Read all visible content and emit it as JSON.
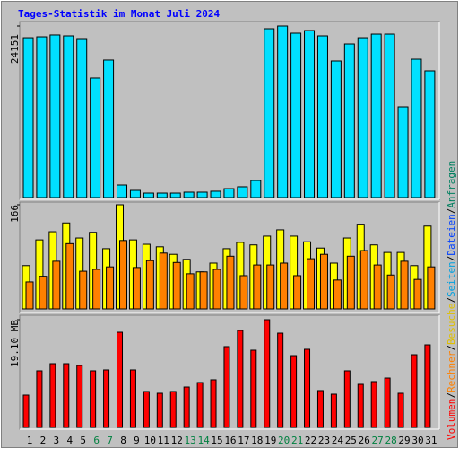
{
  "chart_data": [
    {
      "type": "bar",
      "title": "Tages-Statistik im Monat Juli 2024",
      "title_color": "#0000ff",
      "series": [
        {
          "color": "#00e0ff",
          "values": [
            22500,
            22630,
            22890,
            22760,
            22380,
            16820,
            19350,
            1770,
            1010,
            630,
            630,
            630,
            760,
            760,
            890,
            1260,
            1520,
            2400,
            23770,
            24151,
            23140,
            23520,
            22760,
            19220,
            21620,
            22500,
            23010,
            23010,
            12770,
            19470,
            17830
          ]
        }
      ],
      "ylim": [
        0,
        24151
      ],
      "yticks": [
        24151
      ]
    },
    {
      "type": "bar",
      "series": [
        {
          "color": "#ffff00",
          "values": [
            69,
            110,
            123,
            137,
            113,
            122,
            96,
            166,
            110,
            103,
            99,
            87,
            79,
            59,
            73,
            96,
            106,
            102,
            116,
            126,
            116,
            107,
            97,
            73,
            113,
            135,
            102,
            90,
            90,
            69,
            132
          ]
        },
        {
          "color": "#ff8000",
          "values": [
            43,
            52,
            76,
            104,
            60,
            63,
            67,
            109,
            66,
            77,
            89,
            74,
            56,
            59,
            63,
            84,
            53,
            70,
            70,
            73,
            53,
            80,
            87,
            46,
            84,
            93,
            70,
            54,
            76,
            47,
            67
          ]
        }
      ],
      "ylim": [
        0,
        166
      ],
      "yticks": [
        166
      ]
    },
    {
      "type": "bar",
      "series": [
        {
          "color": "#ff0000",
          "values": [
            5.73,
            10.03,
            11.3,
            11.3,
            10.98,
            10.03,
            10.19,
            16.87,
            10.19,
            6.37,
            6.05,
            6.37,
            7.16,
            7.96,
            8.44,
            14.33,
            17.19,
            13.69,
            19.1,
            16.71,
            12.73,
            13.85,
            6.53,
            5.89,
            10.03,
            7.64,
            8.12,
            8.75,
            6.05,
            12.89,
            14.64
          ]
        }
      ],
      "ylim": [
        0,
        19.1
      ],
      "yticks": [
        {
          "value": 19.1,
          "label": "19.10 MB"
        }
      ],
      "categories": [
        1,
        2,
        3,
        4,
        5,
        6,
        7,
        8,
        9,
        10,
        11,
        12,
        13,
        14,
        15,
        16,
        17,
        18,
        19,
        20,
        21,
        22,
        23,
        24,
        25,
        26,
        27,
        28,
        29,
        30,
        31
      ],
      "category_label_colors": [
        "#000000",
        "#000000",
        "#000000",
        "#000000",
        "#000000",
        "#008040",
        "#008040",
        "#000000",
        "#000000",
        "#000000",
        "#000000",
        "#000000",
        "#008040",
        "#008040",
        "#000000",
        "#000000",
        "#000000",
        "#000000",
        "#000000",
        "#008040",
        "#008040",
        "#000000",
        "#000000",
        "#000000",
        "#000000",
        "#000000",
        "#008040",
        "#008040",
        "#000000",
        "#000000",
        "#000000"
      ]
    }
  ],
  "legend_separator": "/",
  "legend": [
    {
      "name": "Volumen",
      "color": "#ff0000"
    },
    {
      "name": "Rechner",
      "color": "#ff8000"
    },
    {
      "name": "Besuche",
      "color": "#e0c000"
    },
    {
      "name": "Seiten",
      "color": "#00a0e0"
    },
    {
      "name": "Dateien",
      "color": "#0040ff"
    },
    {
      "name": "Anfragen",
      "color": "#008060"
    }
  ]
}
